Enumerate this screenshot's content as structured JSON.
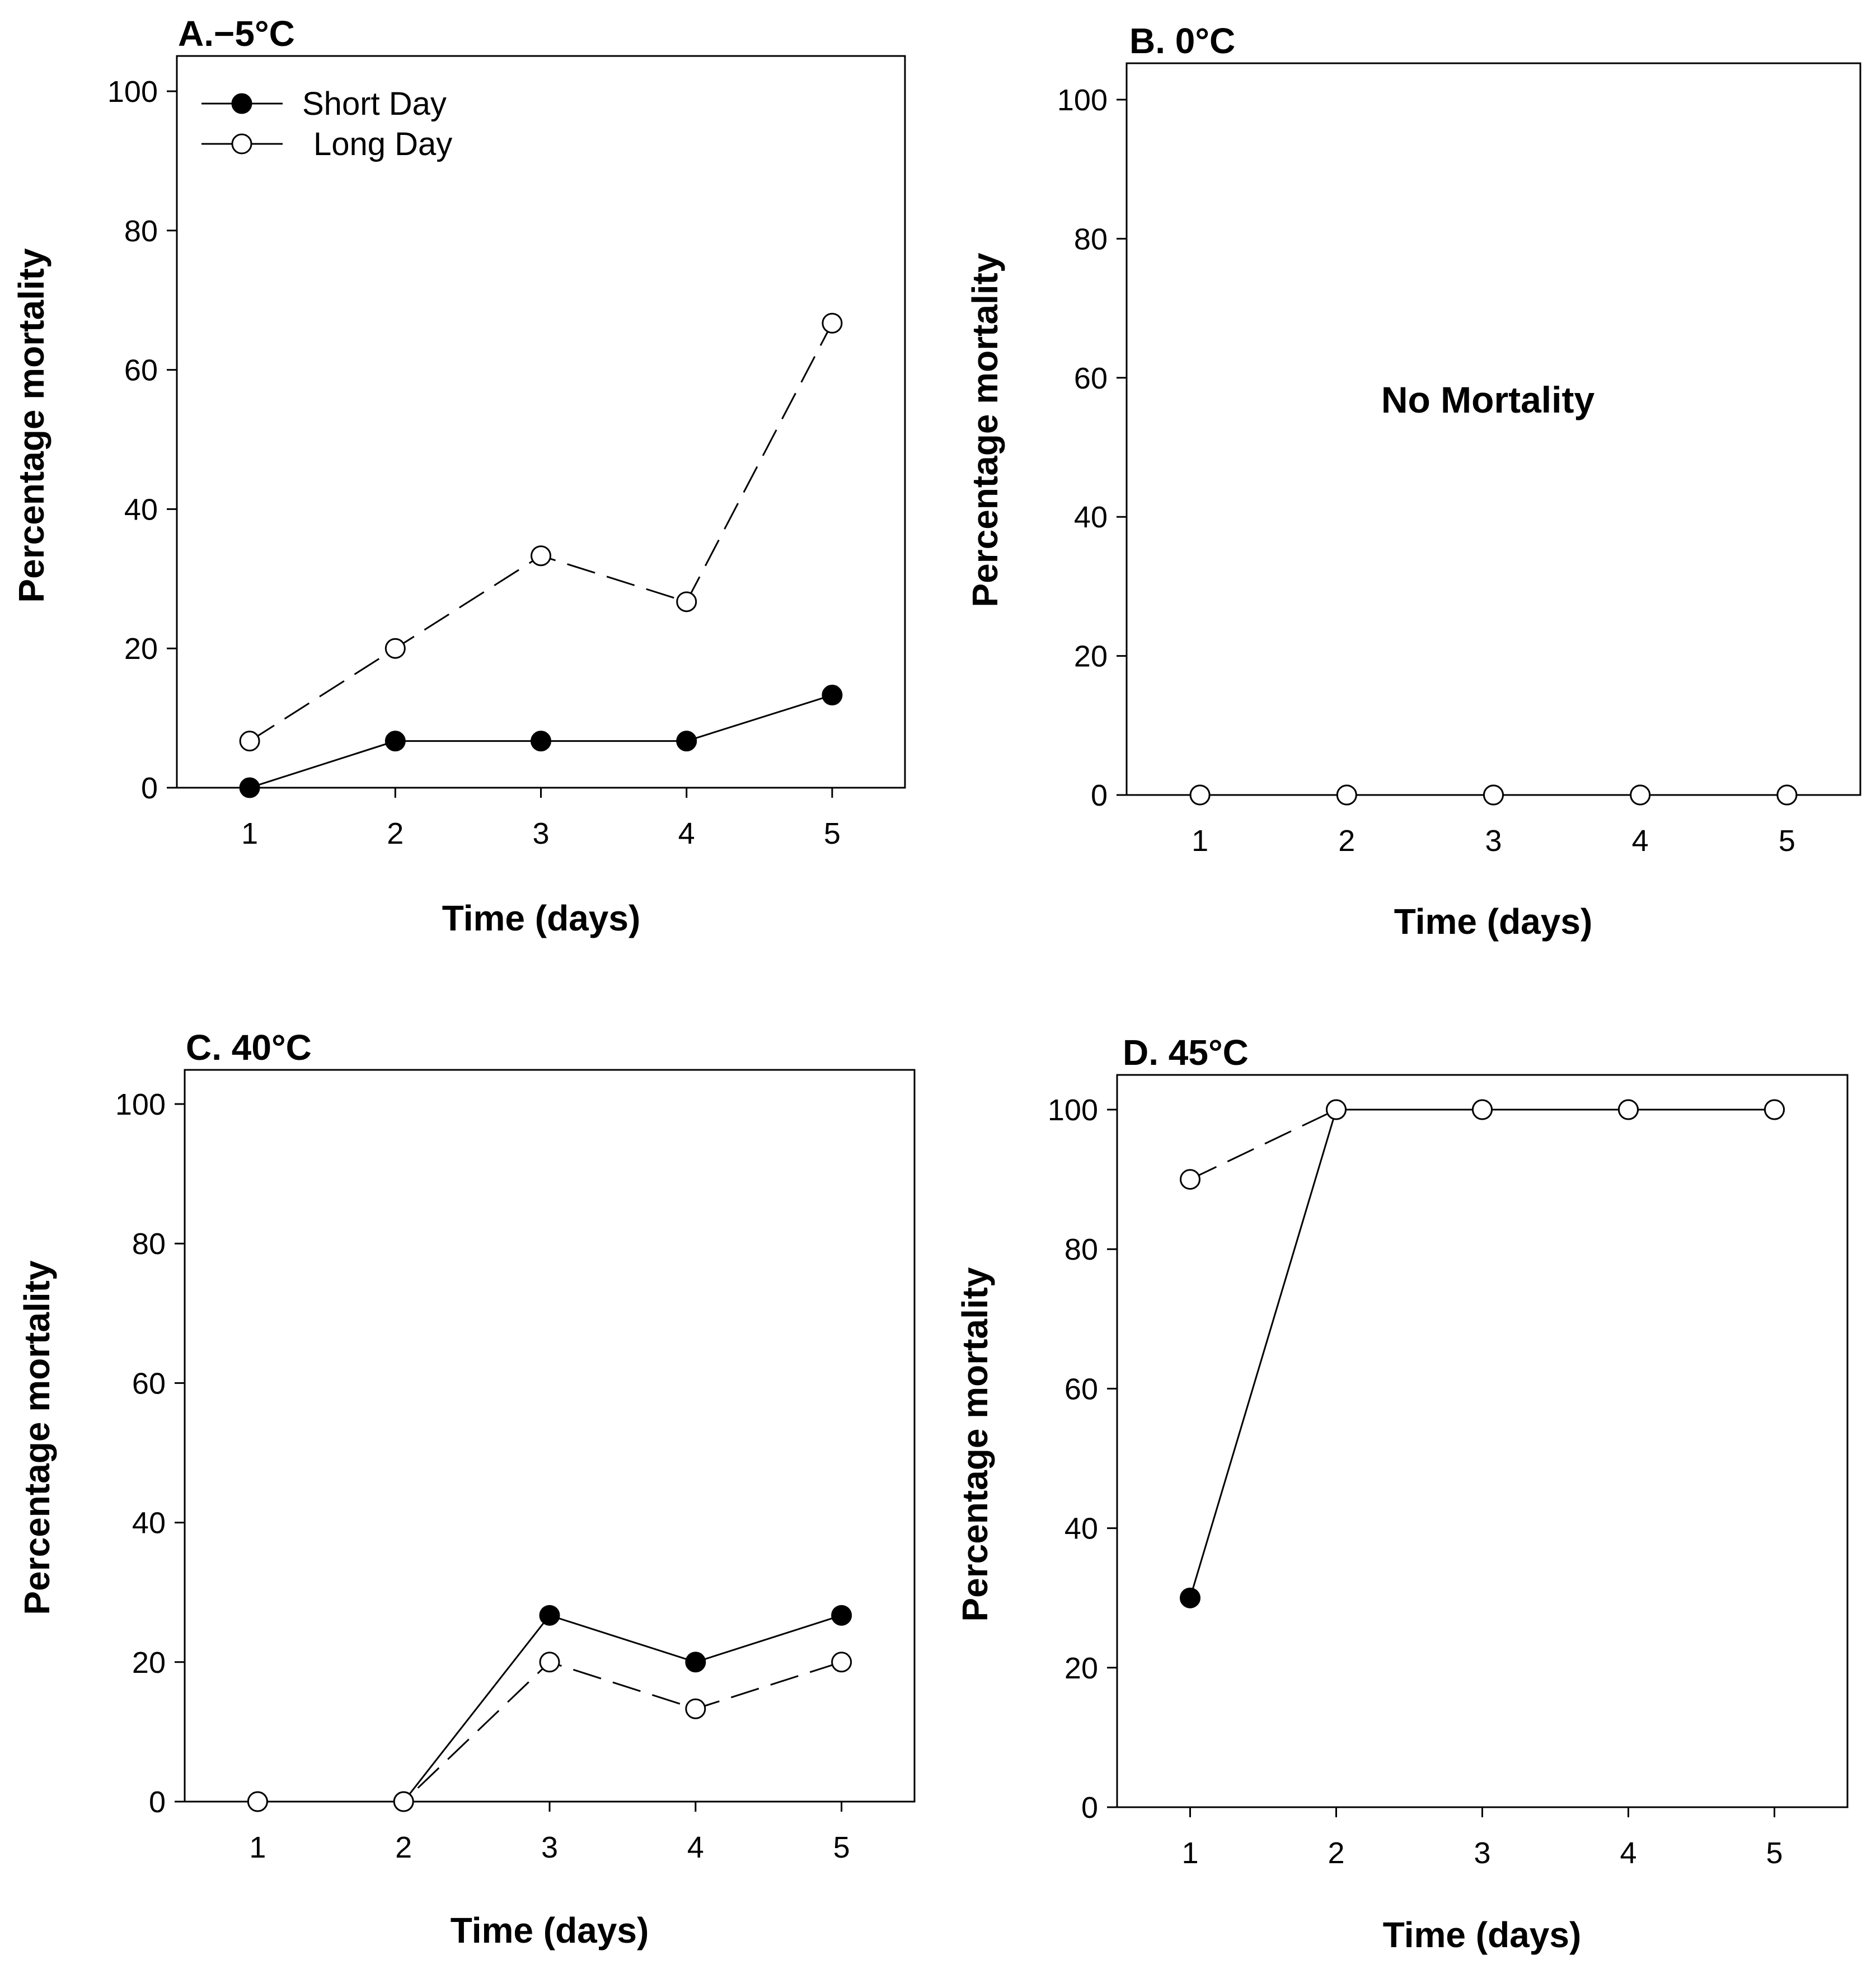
{
  "chart_data": [
    {
      "panel": "A",
      "type": "line",
      "title": "A.−5°C",
      "xlabel": "Time (days)",
      "ylabel": "Percentage mortality",
      "x": [
        1,
        2,
        3,
        4,
        5
      ],
      "xlim": [
        0.5,
        5.5
      ],
      "ylim": [
        0,
        100
      ],
      "yticks": [
        0,
        20,
        40,
        60,
        80,
        100
      ],
      "legend": {
        "placement": "top-left",
        "entries": [
          "Short Day",
          "Long Day"
        ]
      },
      "series": [
        {
          "name": "Short Day",
          "marker": "filled-circle",
          "line": "solid",
          "values": [
            0,
            6.7,
            6.7,
            6.7,
            13.3
          ]
        },
        {
          "name": "Long Day",
          "marker": "open-circle",
          "line": "dashed",
          "values": [
            6.7,
            20,
            33.3,
            26.7,
            66.7
          ]
        }
      ]
    },
    {
      "panel": "B",
      "type": "line",
      "title": "B. 0°C",
      "xlabel": "Time (days)",
      "ylabel": "Percentage mortality",
      "annotation": "No Mortality",
      "x": [
        1,
        2,
        3,
        4,
        5
      ],
      "xlim": [
        0.5,
        5.5
      ],
      "ylim": [
        0,
        100
      ],
      "yticks": [
        0,
        20,
        40,
        60,
        80,
        100
      ],
      "series": [
        {
          "name": "Short Day",
          "marker": "filled-circle",
          "line": "solid",
          "values": [
            0,
            0,
            0,
            0,
            0
          ]
        },
        {
          "name": "Long Day",
          "marker": "open-circle",
          "line": "dashed",
          "values": [
            0,
            0,
            0,
            0,
            0
          ]
        }
      ]
    },
    {
      "panel": "C",
      "type": "line",
      "title": "C. 40°C",
      "xlabel": "Time (days)",
      "ylabel": "Percentage mortality",
      "x": [
        1,
        2,
        3,
        4,
        5
      ],
      "xlim": [
        0.5,
        5.5
      ],
      "ylim": [
        0,
        100
      ],
      "yticks": [
        0,
        20,
        40,
        60,
        80,
        100
      ],
      "series": [
        {
          "name": "Short Day",
          "marker": "filled-circle",
          "line": "solid",
          "values": [
            0,
            0,
            26.7,
            20,
            26.7
          ]
        },
        {
          "name": "Long Day",
          "marker": "open-circle",
          "line": "dashed",
          "values": [
            0,
            0,
            20,
            13.3,
            20
          ]
        }
      ]
    },
    {
      "panel": "D",
      "type": "line",
      "title": "D. 45°C",
      "xlabel": "Time (days)",
      "ylabel": "Percentage mortality",
      "x": [
        1,
        2,
        3,
        4,
        5
      ],
      "xlim": [
        0.5,
        5.5
      ],
      "ylim": [
        0,
        100
      ],
      "yticks": [
        0,
        20,
        40,
        60,
        80,
        100
      ],
      "series": [
        {
          "name": "Short Day",
          "marker": "filled-circle",
          "line": "solid",
          "values": [
            30,
            100,
            100,
            100,
            100
          ]
        },
        {
          "name": "Long Day",
          "marker": "open-circle",
          "line": "dashed",
          "values": [
            90,
            100,
            100,
            100,
            100
          ]
        }
      ]
    }
  ]
}
